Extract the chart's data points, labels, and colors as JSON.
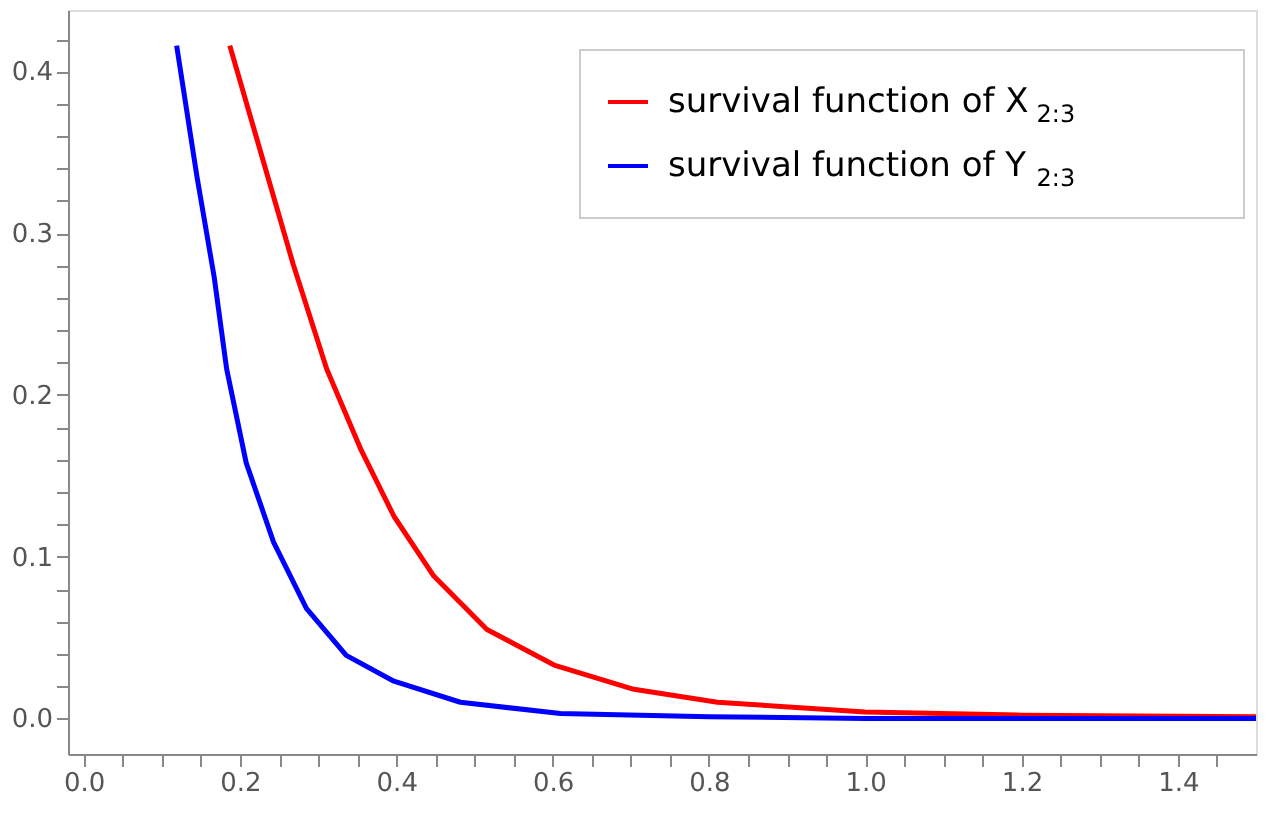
{
  "chart_data": {
    "type": "line",
    "xlim": [
      -0.02,
      1.5
    ],
    "ylim": [
      -0.022,
      0.438
    ],
    "xticks": [
      {
        "value": 0,
        "label": "0.0"
      },
      {
        "value": 0.05,
        "label": null
      },
      {
        "value": 0.1,
        "label": null
      },
      {
        "value": 0.15,
        "label": null
      },
      {
        "value": 0.2,
        "label": "0.2"
      },
      {
        "value": 0.25,
        "label": null
      },
      {
        "value": 0.3,
        "label": null
      },
      {
        "value": 0.35,
        "label": null
      },
      {
        "value": 0.4,
        "label": "0.4"
      },
      {
        "value": 0.45,
        "label": null
      },
      {
        "value": 0.5,
        "label": null
      },
      {
        "value": 0.55,
        "label": null
      },
      {
        "value": 0.6,
        "label": "0.6"
      },
      {
        "value": 0.65,
        "label": null
      },
      {
        "value": 0.7,
        "label": null
      },
      {
        "value": 0.75,
        "label": null
      },
      {
        "value": 0.8,
        "label": "0.8"
      },
      {
        "value": 0.85,
        "label": null
      },
      {
        "value": 0.9,
        "label": null
      },
      {
        "value": 0.95,
        "label": null
      },
      {
        "value": 1.0,
        "label": "1.0"
      },
      {
        "value": 1.05,
        "label": null
      },
      {
        "value": 1.1,
        "label": null
      },
      {
        "value": 1.15,
        "label": null
      },
      {
        "value": 1.2,
        "label": "1.2"
      },
      {
        "value": 1.25,
        "label": null
      },
      {
        "value": 1.3,
        "label": null
      },
      {
        "value": 1.35,
        "label": null
      },
      {
        "value": 1.4,
        "label": "1.4"
      },
      {
        "value": 1.45,
        "label": null
      }
    ],
    "yticks": [
      {
        "value": 0,
        "label": "0.0"
      },
      {
        "value": 0.02,
        "label": null
      },
      {
        "value": 0.04,
        "label": null
      },
      {
        "value": 0.06,
        "label": null
      },
      {
        "value": 0.08,
        "label": null
      },
      {
        "value": 0.1,
        "label": "0.1"
      },
      {
        "value": 0.12,
        "label": null
      },
      {
        "value": 0.14,
        "label": null
      },
      {
        "value": 0.16,
        "label": null
      },
      {
        "value": 0.18,
        "label": null
      },
      {
        "value": 0.2,
        "label": "0.2"
      },
      {
        "value": 0.22,
        "label": null
      },
      {
        "value": 0.24,
        "label": null
      },
      {
        "value": 0.26,
        "label": null
      },
      {
        "value": 0.28,
        "label": null
      },
      {
        "value": 0.3,
        "label": "0.3"
      },
      {
        "value": 0.32,
        "label": null
      },
      {
        "value": 0.34,
        "label": null
      },
      {
        "value": 0.36,
        "label": null
      },
      {
        "value": 0.38,
        "label": null
      },
      {
        "value": 0.4,
        "label": "0.4"
      },
      {
        "value": 0.42,
        "label": null
      }
    ],
    "grid": false,
    "legend": "top right",
    "marker": "none",
    "line_style": "solid",
    "series": [
      {
        "name": "survival function of X$_{2:3}$",
        "color": "#ff0000",
        "x": [
          0.187,
          0.226,
          0.268,
          0.311,
          0.355,
          0.397,
          0.448,
          0.516,
          0.602,
          0.704,
          0.811,
          1.0,
          1.2,
          1.5
        ],
        "values": [
          0.416,
          0.351,
          0.281,
          0.216,
          0.166,
          0.125,
          0.088,
          0.055,
          0.033,
          0.018,
          0.01,
          0.004,
          0.002,
          0.001
        ]
      },
      {
        "name": "survival function of Y$_{2:3}$",
        "color": "#0000ff",
        "x": [
          0.119,
          0.145,
          0.167,
          0.183,
          0.208,
          0.243,
          0.285,
          0.336,
          0.397,
          0.482,
          0.61,
          0.8,
          1.0,
          1.5
        ],
        "values": [
          0.416,
          0.335,
          0.273,
          0.216,
          0.158,
          0.109,
          0.068,
          0.039,
          0.023,
          0.01,
          0.003,
          0.001,
          0.0,
          0.0
        ]
      }
    ]
  }
}
